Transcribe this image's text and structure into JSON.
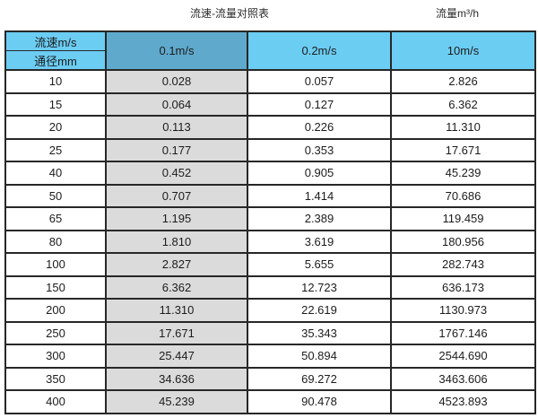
{
  "titles": {
    "left": "流速-流量对照表",
    "right": "流量m³/h"
  },
  "table": {
    "corner_top": "流速m/s",
    "corner_bottom": "通径mm",
    "columns": [
      "0.1m/s",
      "0.2m/s",
      "10m/s"
    ],
    "rows": [
      {
        "diameter": "10",
        "values": [
          "0.028",
          "0.057",
          "2.826"
        ]
      },
      {
        "diameter": "15",
        "values": [
          "0.064",
          "0.127",
          "6.362"
        ]
      },
      {
        "diameter": "20",
        "values": [
          "0.113",
          "0.226",
          "11.310"
        ]
      },
      {
        "diameter": "25",
        "values": [
          "0.177",
          "0.353",
          "17.671"
        ]
      },
      {
        "diameter": "40",
        "values": [
          "0.452",
          "0.905",
          "45.239"
        ]
      },
      {
        "diameter": "50",
        "values": [
          "0.707",
          "1.414",
          "70.686"
        ]
      },
      {
        "diameter": "65",
        "values": [
          "1.195",
          "2.389",
          "119.459"
        ]
      },
      {
        "diameter": "80",
        "values": [
          "1.810",
          "3.619",
          "180.956"
        ]
      },
      {
        "diameter": "100",
        "values": [
          "2.827",
          "5.655",
          "282.743"
        ]
      },
      {
        "diameter": "150",
        "values": [
          "6.362",
          "12.723",
          "636.173"
        ]
      },
      {
        "diameter": "200",
        "values": [
          "11.310",
          "22.619",
          "1130.973"
        ]
      },
      {
        "diameter": "250",
        "values": [
          "17.671",
          "35.343",
          "1767.146"
        ]
      },
      {
        "diameter": "300",
        "values": [
          "25.447",
          "50.894",
          "2544.690"
        ]
      },
      {
        "diameter": "350",
        "values": [
          "34.636",
          "69.272",
          "3463.606"
        ]
      },
      {
        "diameter": "400",
        "values": [
          "45.239",
          "90.478",
          "4523.893"
        ]
      }
    ]
  },
  "colors": {
    "header_blue": "#6CCDF3",
    "header_muted_blue": "#5FA9CC",
    "shaded_column_gray": "#DBDBDB",
    "border": "#272727",
    "text": "#1C1C1C"
  }
}
